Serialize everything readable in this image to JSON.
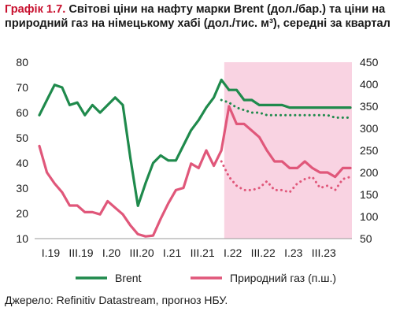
{
  "figure": {
    "label": "Графік 1.7.",
    "title": "Світові ціни на нафту марки Brent (дол./бар.) та ціни на природний газ на німецькому хабі (дол./тис. м³), середні за квартал",
    "source": "Джерело: Refinitiv Datastream, прогноз НБУ."
  },
  "colors": {
    "brent": "#1f8a4c",
    "gas": "#e0577a",
    "forecast_shade": "#f9d3e2"
  },
  "chart_data": {
    "type": "line",
    "x_labels": [
      "I.19",
      "III.19",
      "I.20",
      "III.20",
      "I.21",
      "III.21",
      "I.22",
      "III.22",
      "I.23",
      "III.23"
    ],
    "y_left": {
      "ticks": [
        10,
        20,
        30,
        40,
        50,
        60,
        70,
        80
      ],
      "range": [
        10,
        80
      ]
    },
    "y_right": {
      "ticks": [
        50,
        100,
        150,
        200,
        250,
        300,
        350,
        400,
        450
      ],
      "range": [
        50,
        450
      ]
    },
    "forecast_region": {
      "from_x": 25,
      "to_x": 41
    },
    "series": [
      {
        "name": "Brent",
        "axis": "left",
        "style": "solid",
        "x": [
          0,
          1,
          2,
          3,
          4,
          5,
          6,
          7,
          8,
          9,
          10,
          11,
          12,
          13,
          14,
          15,
          16,
          17,
          18,
          19,
          20,
          21,
          22,
          23,
          24,
          25
        ],
        "values": [
          59,
          65,
          71,
          70,
          63,
          64,
          59,
          63,
          60,
          63,
          66,
          63,
          42,
          23,
          32,
          40,
          43,
          41,
          41,
          47,
          53,
          57,
          62,
          66,
          73,
          69
        ]
      },
      {
        "name": "Brent",
        "axis": "left",
        "style": "solid",
        "x": [
          25,
          26,
          27,
          28,
          29,
          30,
          31,
          32,
          33,
          34,
          35,
          36,
          37,
          38,
          39,
          40,
          41
        ],
        "values": [
          69,
          69,
          65,
          65,
          63,
          63,
          63,
          63,
          62,
          62,
          62,
          62,
          62,
          62,
          62,
          62,
          62
        ]
      },
      {
        "name": "Brent",
        "axis": "left",
        "style": "dotted",
        "x": [
          24,
          25,
          26,
          27,
          28,
          29,
          30,
          31,
          32,
          33,
          34,
          35,
          36,
          37,
          38,
          39,
          40,
          41
        ],
        "values": [
          65,
          64,
          62,
          61,
          60,
          60,
          59,
          59,
          59,
          59,
          59,
          59,
          59,
          59,
          59,
          58,
          58,
          58
        ]
      },
      {
        "name": "Природний газ (п.ш.)",
        "axis": "right",
        "style": "solid",
        "x": [
          0,
          1,
          2,
          3,
          4,
          5,
          6,
          7,
          8,
          9,
          10,
          11,
          12,
          13,
          14,
          15,
          16,
          17,
          18,
          19,
          20,
          21,
          22,
          23,
          24,
          25
        ],
        "values": [
          260,
          200,
          175,
          155,
          125,
          125,
          110,
          110,
          105,
          135,
          120,
          105,
          80,
          60,
          55,
          57,
          95,
          130,
          160,
          165,
          220,
          210,
          250,
          215,
          250,
          350
        ]
      },
      {
        "name": "Природний газ (п.ш.)",
        "axis": "right",
        "style": "solid",
        "x": [
          25,
          26,
          27,
          28,
          29,
          30,
          31,
          32,
          33,
          34,
          35,
          36,
          37,
          38,
          39,
          40,
          41
        ],
        "values": [
          350,
          310,
          310,
          295,
          280,
          250,
          225,
          225,
          210,
          210,
          225,
          210,
          200,
          200,
          190,
          210,
          210
        ]
      },
      {
        "name": "Природний газ (п.ш.)",
        "axis": "right",
        "style": "dotted",
        "x": [
          24,
          25,
          26,
          27,
          28,
          29,
          30,
          31,
          32,
          33,
          34,
          35,
          36,
          37,
          38,
          39,
          40,
          41
        ],
        "values": [
          225,
          190,
          170,
          160,
          160,
          165,
          180,
          160,
          160,
          155,
          175,
          185,
          190,
          165,
          170,
          160,
          185,
          190
        ]
      }
    ],
    "legend": {
      "position": "bottom",
      "entries": [
        {
          "name": "Brent",
          "color": "#1f8a4c"
        },
        {
          "name": "Природний газ (п.ш.)",
          "color": "#e0577a"
        }
      ]
    }
  }
}
